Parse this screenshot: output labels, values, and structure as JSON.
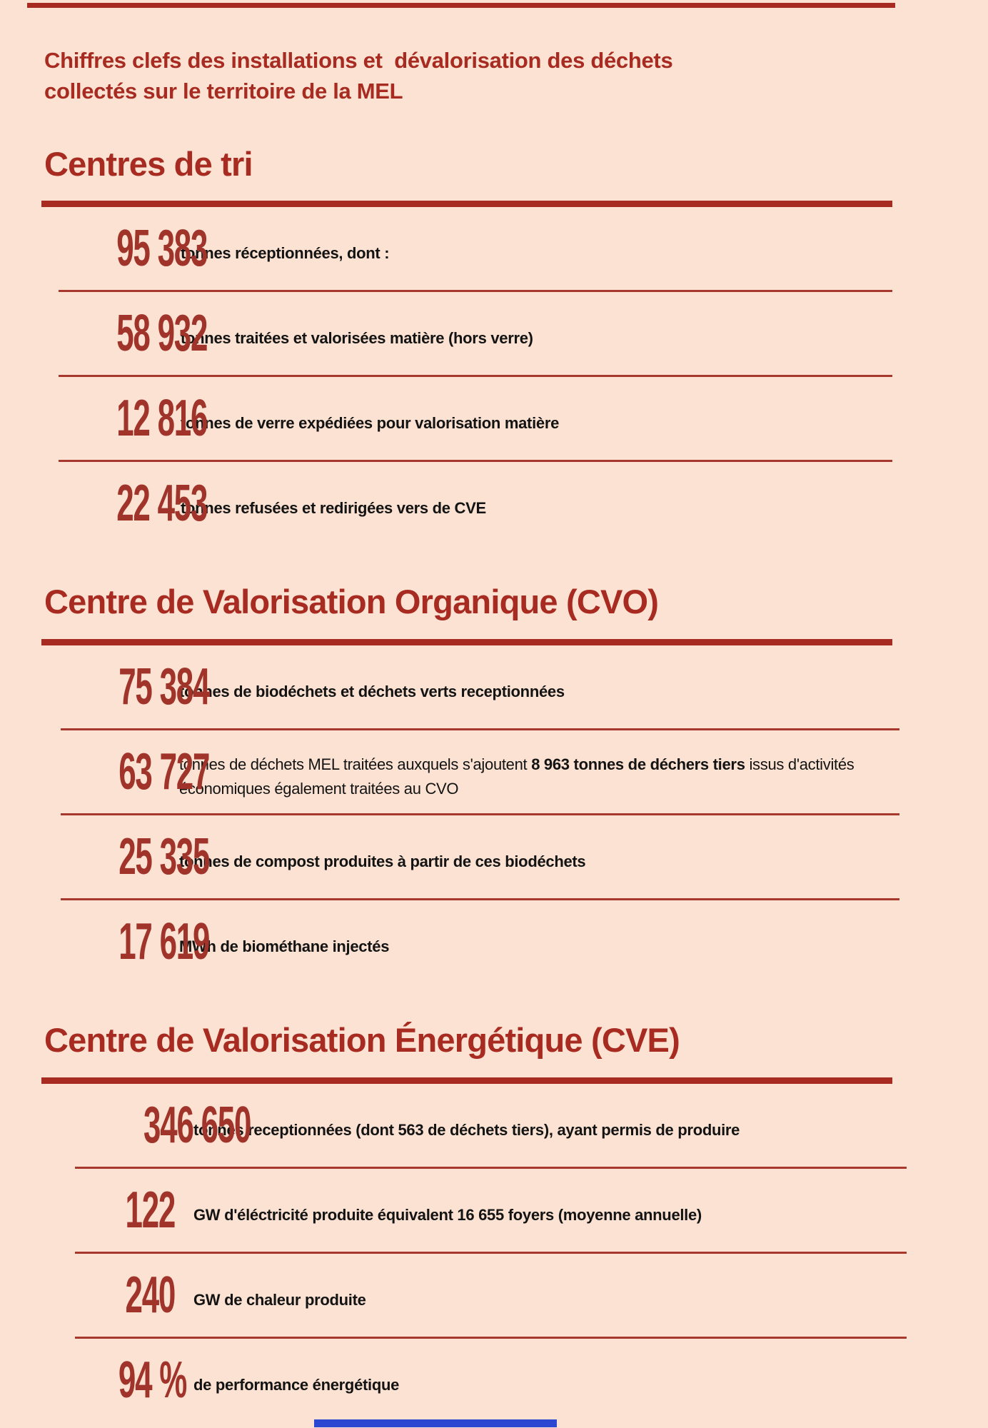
{
  "page": {
    "title": "Chiffres clefs des installations et  dévalorisation des déchets\ncollectés sur le territoire de la MEL"
  },
  "decor": {
    "top_bar_color": "#a72b21",
    "bottom_bar_color": "#2c48d2",
    "background_color": "#fbe2d2",
    "accent_red": "#a72b21",
    "number_red": "#a0342b",
    "text_color": "#131313"
  },
  "sections": [
    {
      "heading": "Centres de tri",
      "rows": [
        {
          "number": "95 383",
          "label": "tonnes réceptionnées, dont :",
          "variant": "bold",
          "label_bold": "",
          "label_tail": ""
        },
        {
          "number": "58 932",
          "label": "tonnes traitées et valorisées matière (hors verre)",
          "variant": "bold",
          "label_bold": "",
          "label_tail": ""
        },
        {
          "number": "12 816",
          "label": "tonnes de verre expédiées pour valorisation matière",
          "variant": "bold",
          "label_bold": "",
          "label_tail": ""
        },
        {
          "number": "22 453",
          "label": "tonnes refusées et redirigées vers de CVE",
          "variant": "bold",
          "label_bold": "",
          "label_tail": ""
        }
      ]
    },
    {
      "heading": "Centre de Valorisation Organique (CVO)",
      "rows": [
        {
          "number": "75 384",
          "label": "tonnes de biodéchets et déchets verts receptionnées",
          "variant": "bold",
          "label_bold": "",
          "label_tail": ""
        },
        {
          "number": "63 727",
          "label": "tonnes de déchets MEL traitées auxquels s'ajoutent ",
          "label_bold": "8 963 tonnes de déchers tiers",
          "label_tail": " issus d'activités économiques également traitées au CVO",
          "variant": "mixed"
        },
        {
          "number": "25 335",
          "label": "tonnes de compost produites à partir de ces biodéchets",
          "variant": "bold",
          "label_bold": "",
          "label_tail": ""
        },
        {
          "number": "17 619",
          "label": "MWh de biométhane injectés",
          "variant": "bold",
          "label_bold": "",
          "label_tail": ""
        }
      ]
    },
    {
      "heading": "Centre de Valorisation Énergétique (CVE)",
      "rows": [
        {
          "number": "346 650",
          "label": "tonnes receptionnées (dont 563 de déchets tiers), ayant permis de produire",
          "variant": "bold",
          "label_bold": "",
          "label_tail": ""
        },
        {
          "number": "122",
          "label": "GW d'éléctricité produite équivalent 16 655 foyers (moyenne annuelle)",
          "variant": "bold",
          "label_bold": "",
          "label_tail": ""
        },
        {
          "number": "240",
          "label": "GW de chaleur produite",
          "variant": "bold",
          "label_bold": "",
          "label_tail": ""
        },
        {
          "number": "94 %",
          "label": "de performance énergétique",
          "variant": "bold",
          "label_bold": "",
          "label_tail": ""
        }
      ]
    }
  ]
}
